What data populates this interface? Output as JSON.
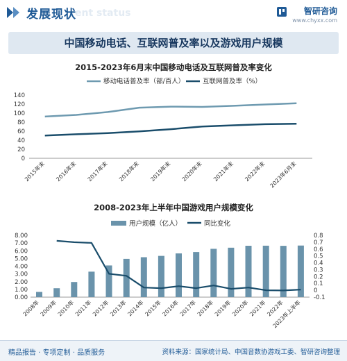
{
  "header": {
    "title": "发展现状",
    "ghost_text": "ent status",
    "brand_name": "智研咨询",
    "brand_url": "www.chyxx.com"
  },
  "banner": {
    "title": "中国移动电话、互联网普及率以及游戏用户规模"
  },
  "footer": {
    "left": "精品报告 · 专项定制 · 品质服务",
    "right": "资料来源：国家统计局、中国音数协游戏工委、智研咨询整理"
  },
  "colors": {
    "line1": "#6e9ab0",
    "line2": "#1a4d6b",
    "bar": "#6a93ab",
    "growth": "#1a4d6b",
    "brand": "#1f5a96"
  },
  "chart_data": [
    {
      "type": "line",
      "title": "2015-2023年6月末中国移动电话及互联网普及率变化",
      "categories": [
        "2015年末",
        "2016年末",
        "2017年末",
        "2018年末",
        "2019年末",
        "2020年末",
        "2021年末",
        "2022年末",
        "2023年6月末"
      ],
      "series": [
        {
          "name": "移动电话普及率（部/百人）",
          "values": [
            92.5,
            96.2,
            102.5,
            112.2,
            114.4,
            113.9,
            116.3,
            119.2,
            121.9
          ]
        },
        {
          "name": "互联网普及率（%）",
          "values": [
            50.3,
            53.2,
            55.8,
            59.6,
            64.5,
            70.4,
            73.0,
            75.6,
            76.4
          ]
        }
      ],
      "y_ticks": [
        "0",
        "20",
        "40",
        "60",
        "80",
        "100",
        "120",
        "140"
      ],
      "ylim": [
        0,
        140
      ],
      "grid": false,
      "legend": "top"
    },
    {
      "type": "bar",
      "title": "2008-2023年上半年中国游戏用户规模变化",
      "categories": [
        "2008年",
        "2009年",
        "2010年",
        "2011年",
        "2012年",
        "2013年",
        "2014年",
        "2015年",
        "2016年",
        "2017年",
        "2018年",
        "2019年",
        "2020年",
        "2021年",
        "2022年",
        "2023年上半年"
      ],
      "series": [
        {
          "name": "用户规模（亿人）",
          "type": "bar",
          "axis": "left",
          "values": [
            0.67,
            1.15,
            1.96,
            3.3,
            4.1,
            4.95,
            5.17,
            5.34,
            5.66,
            5.83,
            6.26,
            6.4,
            6.65,
            6.66,
            6.64,
            6.68
          ]
        },
        {
          "name": "同比变化",
          "type": "line",
          "axis": "right",
          "values": [
            null,
            0.72,
            0.7,
            0.69,
            0.24,
            0.21,
            0.04,
            0.03,
            0.06,
            0.03,
            0.07,
            0.02,
            0.04,
            0.0,
            -0.003,
            0.01
          ]
        }
      ],
      "y_ticks_left": [
        "0.00",
        "1.00",
        "2.00",
        "3.00",
        "4.00",
        "5.00",
        "6.00",
        "7.00",
        "8.00"
      ],
      "y_ticks_right": [
        "-0.1",
        "0",
        "0.1",
        "0.2",
        "0.3",
        "0.4",
        "0.5",
        "0.6",
        "0.7",
        "0.8"
      ],
      "ylim_left": [
        0,
        8
      ],
      "ylim_right": [
        -0.1,
        0.8
      ],
      "grid": false,
      "legend": "top"
    }
  ]
}
